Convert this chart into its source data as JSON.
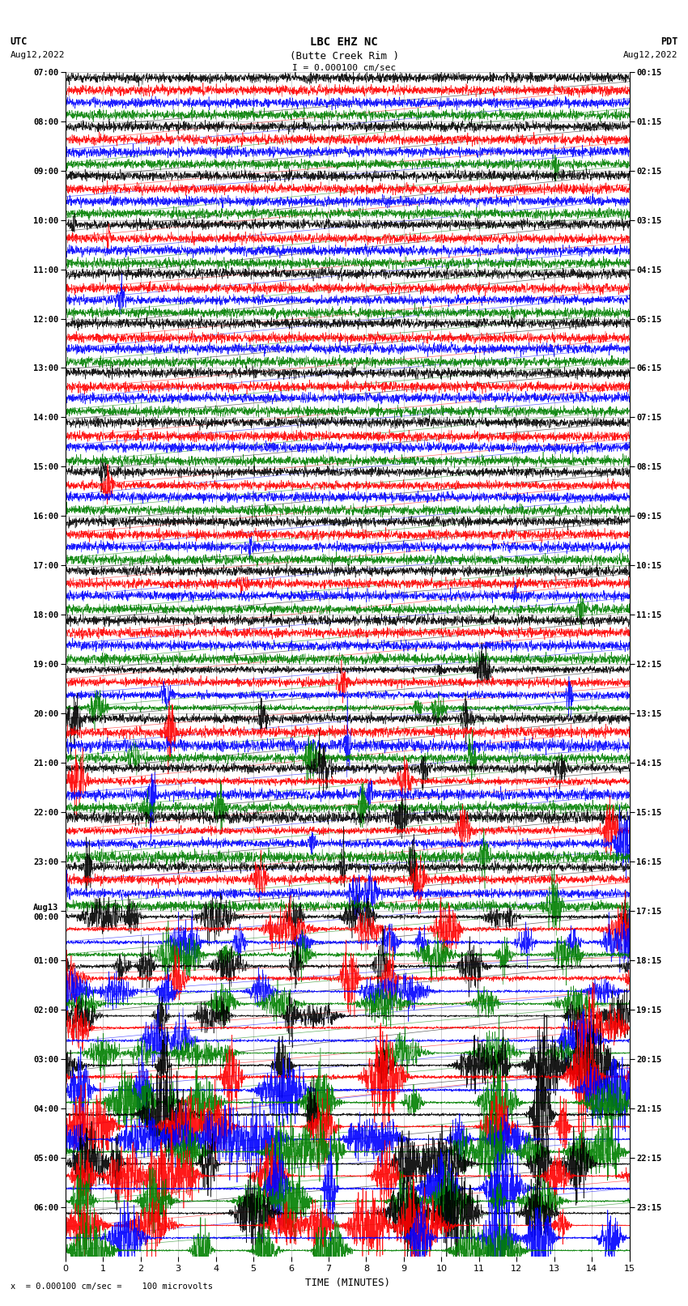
{
  "title_line1": "LBC EHZ NC",
  "title_line2": "(Butte Creek Rim )",
  "scale_label": "I = 0.000100 cm/sec",
  "left_label_line1": "UTC",
  "left_label_line2": "Aug12,2022",
  "right_label_line1": "PDT",
  "right_label_line2": "Aug12,2022",
  "bottom_label": "x  = 0.000100 cm/sec =    100 microvolts",
  "xlabel": "TIME (MINUTES)",
  "xlim": [
    0,
    15
  ],
  "xticks": [
    0,
    1,
    2,
    3,
    4,
    5,
    6,
    7,
    8,
    9,
    10,
    11,
    12,
    13,
    14,
    15
  ],
  "num_rows": 24,
  "row_colors": [
    "black",
    "red",
    "blue",
    "green"
  ],
  "utc_labels": [
    "07:00",
    "08:00",
    "09:00",
    "10:00",
    "11:00",
    "12:00",
    "13:00",
    "14:00",
    "15:00",
    "16:00",
    "17:00",
    "18:00",
    "19:00",
    "20:00",
    "21:00",
    "22:00",
    "23:00",
    "Aug13\n00:00",
    "01:00",
    "02:00",
    "03:00",
    "04:00",
    "05:00",
    "06:00"
  ],
  "pdt_labels": [
    "00:15",
    "01:15",
    "02:15",
    "03:15",
    "04:15",
    "05:15",
    "06:15",
    "07:15",
    "08:15",
    "09:15",
    "10:15",
    "11:15",
    "12:15",
    "13:15",
    "14:15",
    "15:15",
    "16:15",
    "17:15",
    "18:15",
    "19:15",
    "20:15",
    "21:15",
    "22:15",
    "23:15"
  ],
  "figsize": [
    8.5,
    16.13
  ],
  "dpi": 100
}
